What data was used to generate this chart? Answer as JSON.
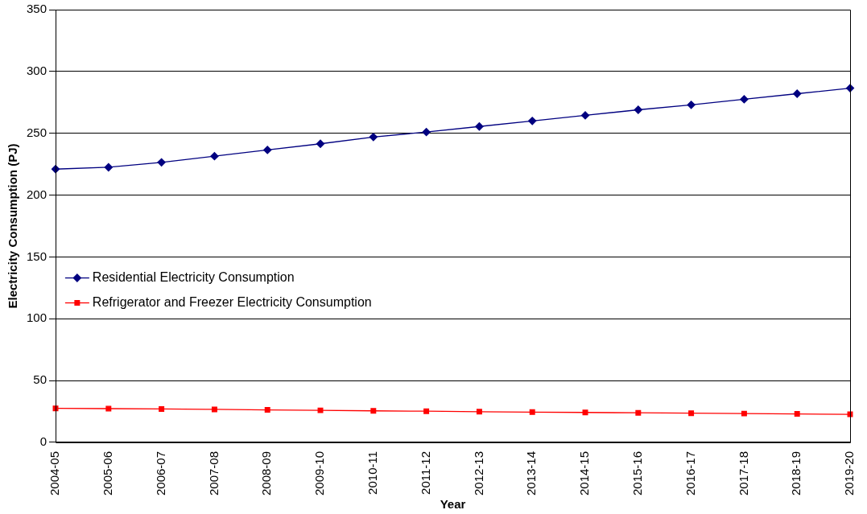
{
  "chart_data": {
    "type": "line",
    "xlabel": "Year",
    "ylabel": "Electricity Consumption (PJ)",
    "categories": [
      "2004-05",
      "2005-06",
      "2006-07",
      "2007-08",
      "2008-09",
      "2009-10",
      "2010-11",
      "2011-12",
      "2012-13",
      "2013-14",
      "2014-15",
      "2015-16",
      "2016-17",
      "2017-18",
      "2018-19",
      "2019-20"
    ],
    "series": [
      {
        "name": "Residential Electricity Consumption",
        "color": "#000080",
        "marker": "diamond",
        "values": [
          221,
          222.5,
          226.5,
          231.5,
          236.5,
          241.5,
          247,
          251,
          255.5,
          260,
          264.5,
          269,
          273,
          277.5,
          282,
          286.5
        ]
      },
      {
        "name": "Refrigerator and Freezer Electricity Consumption",
        "color": "#ff0000",
        "marker": "square",
        "values": [
          27.5,
          27.3,
          27,
          26.7,
          26.3,
          25.9,
          25.5,
          25.2,
          24.8,
          24.5,
          24.2,
          23.9,
          23.6,
          23.3,
          23,
          22.7
        ]
      }
    ],
    "ylim": [
      0,
      350
    ],
    "yticks": [
      0,
      50,
      100,
      150,
      200,
      250,
      300,
      350
    ],
    "grid": "y",
    "legend": "left",
    "line_style": "solid"
  }
}
